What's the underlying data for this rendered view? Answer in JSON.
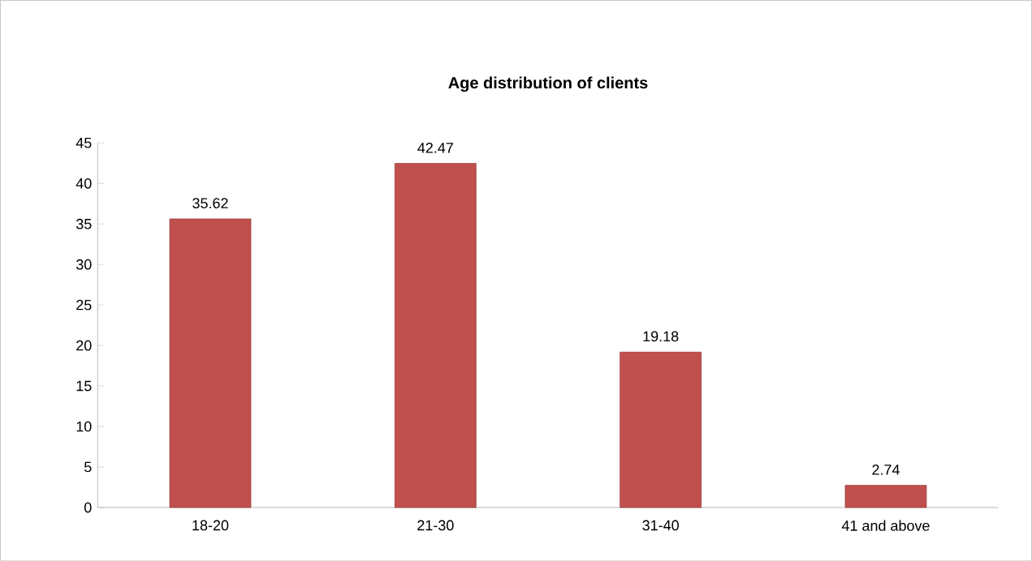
{
  "chart_data": {
    "type": "bar",
    "title": "Age distribution of clients",
    "categories": [
      "18-20",
      "21-30",
      "31-40",
      "41 and above"
    ],
    "values": [
      35.62,
      42.47,
      19.18,
      2.74
    ],
    "color": "#c0504d",
    "ylim": [
      0,
      45
    ],
    "yticks": [
      0,
      5,
      10,
      15,
      20,
      25,
      30,
      35,
      40,
      45
    ],
    "data_labels": true
  }
}
